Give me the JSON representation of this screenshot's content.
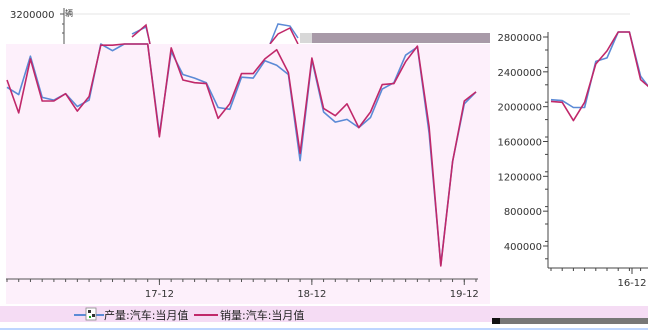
{
  "colors": {
    "production": "#5b8ad6",
    "sales": "#c0286a",
    "panel_bg": "#fdf0fb",
    "legend_bg": "#f5dcf4",
    "topstrip_bg": "#efefef"
  },
  "legend": {
    "production_label": "产量:汽车:当月值",
    "sales_label": "销量:汽车:当月值"
  },
  "chart_data": [
    {
      "type": "line",
      "panel": "main",
      "x_tick_labels": [
        "17-12",
        "18-12",
        "19-12"
      ],
      "x_tick_index": [
        13,
        26,
        39
      ],
      "top_tick_label": "3200000",
      "unit_glyph": "辆",
      "ylim": [
        0,
        3200000
      ],
      "series": [
        {
          "name": "产量:汽车:当月值",
          "values": [
            2100000,
            2020000,
            2440000,
            1990000,
            1960000,
            2030000,
            1890000,
            1960000,
            2580000,
            2500000,
            3040000,
            3130000,
            2660000,
            1590000,
            2490000,
            2240000,
            2200000,
            2150000,
            1880000,
            1860000,
            2210000,
            2200000,
            2390000,
            2340000,
            2240000,
            1300000,
            2400000,
            1830000,
            1720000,
            1750000,
            1660000,
            1770000,
            2080000,
            2150000,
            2450000,
            2540000,
            1600000,
            160000,
            1290000,
            1920000,
            2050000
          ],
          "color": "#5b8ad6"
        },
        {
          "name": "销量:汽车:当月值",
          "values": [
            2180000,
            1820000,
            2410000,
            1950000,
            1950000,
            2030000,
            1840000,
            2000000,
            2560000,
            2560000,
            3090000,
            3130000,
            2720000,
            1560000,
            2530000,
            2180000,
            2150000,
            2140000,
            1760000,
            1920000,
            2250000,
            2250000,
            2410000,
            2510000,
            2260000,
            1380000,
            2420000,
            1870000,
            1790000,
            1920000,
            1660000,
            1830000,
            2130000,
            2140000,
            2380000,
            2550000,
            1670000,
            150000,
            1290000,
            1950000,
            2050000
          ],
          "color": "#c0286a"
        }
      ]
    },
    {
      "type": "line",
      "panel": "inset",
      "y_tick_labels": [
        "400000",
        "800000",
        "1200000",
        "1600000",
        "2000000",
        "2400000",
        "2800000"
      ],
      "y_ticks": [
        400000,
        800000,
        1200000,
        1600000,
        2000000,
        2400000,
        2800000
      ],
      "x_tick_labels": [
        "16-12"
      ],
      "x_tick_index": [
        9
      ],
      "ylim": [
        200000,
        2900000
      ],
      "series": [
        {
          "name": "产量:汽车:当月值",
          "values": [
            2080000,
            2070000,
            1990000,
            1990000,
            2520000,
            2560000,
            2860000,
            3000000,
            2350000,
            2180000
          ],
          "color": "#5b8ad6"
        },
        {
          "name": "销量:汽车:当月值",
          "values": [
            2060000,
            2050000,
            1840000,
            2050000,
            2490000,
            2640000,
            2860000,
            3050000,
            2310000,
            2200000
          ],
          "color": "#c0286a"
        }
      ]
    }
  ]
}
